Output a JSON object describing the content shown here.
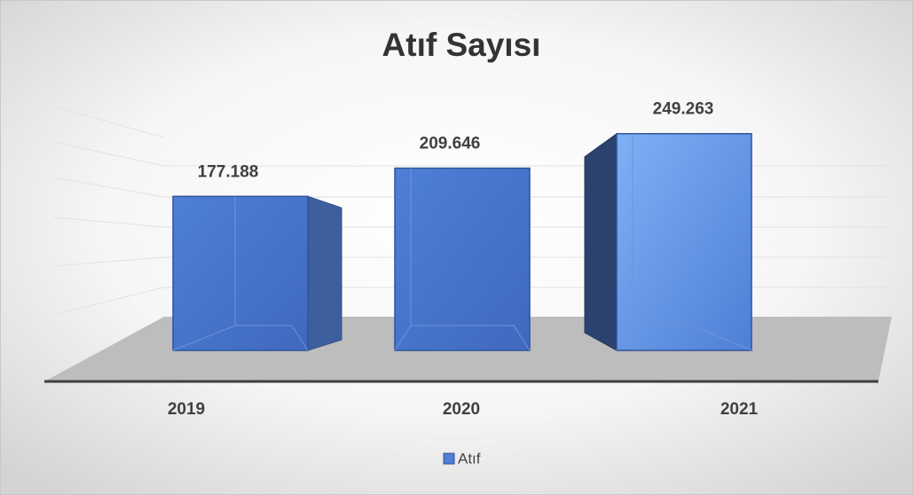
{
  "chart_data": {
    "type": "bar3d",
    "title": "Atıf Sayısı",
    "categories": [
      "2019",
      "2020",
      "2021"
    ],
    "series": [
      {
        "name": "Atıf",
        "color": "#4f7fd6",
        "values": [
          177188,
          209646,
          249263
        ],
        "value_labels": [
          "177.188",
          "209.646",
          "249.263"
        ]
      }
    ],
    "ylim": [
      0,
      300000
    ],
    "grid": true,
    "legend": "bottom"
  }
}
